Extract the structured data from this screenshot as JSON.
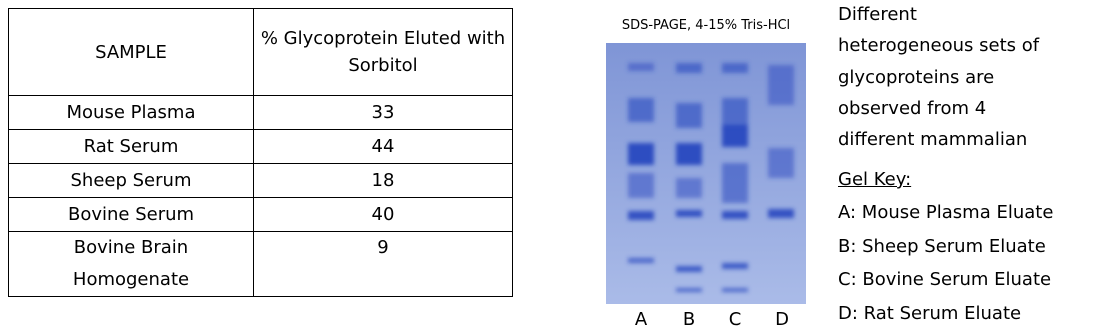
{
  "table": {
    "header": [
      "SAMPLE",
      "% Glycoprotein Eluted with Sorbitol"
    ],
    "rows": [
      [
        "Mouse Plasma",
        33
      ],
      [
        "Rat Serum",
        44
      ],
      [
        "Sheep Serum",
        18
      ],
      [
        "Bovine Serum",
        40
      ],
      [
        "Bovine Brain Homogenate",
        9
      ]
    ]
  },
  "gel": {
    "title": "SDS-PAGE, 4-15% Tris-HCl",
    "lanes": [
      "A",
      "B",
      "C",
      "D"
    ]
  },
  "description": [
    "Different",
    "heterogeneous sets of",
    "glycoproteins are",
    "observed from 4",
    "different mammalian"
  ],
  "key": {
    "heading": "Gel Key:",
    "items": [
      "A: Mouse Plasma Eluate",
      "B: Sheep Serum Eluate",
      "C: Bovine Serum Eluate",
      "D: Rat Serum Eluate"
    ]
  }
}
